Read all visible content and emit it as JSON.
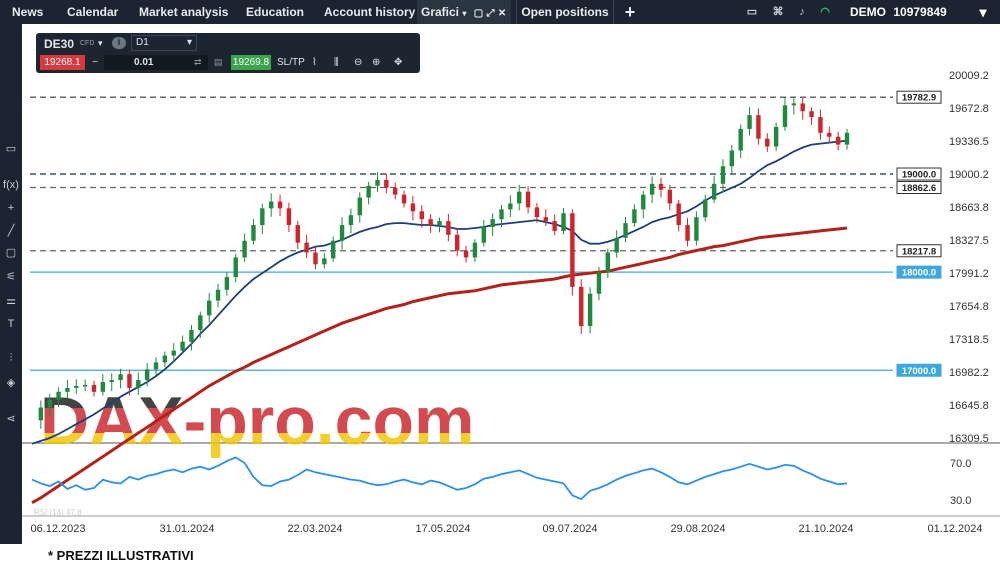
{
  "topbar": {
    "nav": [
      "News",
      "Calendar",
      "Market analysis",
      "Education",
      "Account history"
    ],
    "active_tab": "Grafici",
    "open_positions": "Open positions",
    "add_label": "+",
    "account_mode": "DEMO",
    "account_number": "10979849"
  },
  "toolbar": {
    "symbol": "DE30",
    "symbol_type": "CFD",
    "timeframe": "D1",
    "sell_price": "19268.1",
    "minus": "−",
    "volume": "0.01",
    "plus": "+",
    "buy_price": "19269.8",
    "sltp": "SL/TP"
  },
  "chart_data": {
    "type": "line",
    "symbol": "DE30",
    "timeframe": "D1",
    "y_ticks": [
      "20009.2",
      "19672.8",
      "19336.5",
      "19000.2",
      "18663.8",
      "18327.5",
      "17991.2",
      "17654.8",
      "17318.5",
      "16982.2",
      "16645.8",
      "16309.5"
    ],
    "x_ticks": [
      "06.12.2023",
      "31.01.2024",
      "22.03.2024",
      "17.05.2024",
      "09.07.2024",
      "29.08.2024",
      "21.10.2024",
      "01.12.2024"
    ],
    "levels": [
      {
        "label": "19782.9",
        "value": 19782.9,
        "style": "dashed",
        "color": "#333333"
      },
      {
        "label": "19000.0",
        "value": 19000.0,
        "style": "dashed",
        "color": "#1a2d45"
      },
      {
        "label": "18862.6",
        "value": 18862.6,
        "style": "dashed",
        "color": "#666666"
      },
      {
        "label": "18217.8",
        "value": 18217.8,
        "style": "dashed",
        "color": "#666666"
      },
      {
        "label": "18000.0",
        "value": 18000.0,
        "style": "solid",
        "color": "#3fa7dd"
      },
      {
        "label": "17000.0",
        "value": 17000.0,
        "style": "solid",
        "color": "#3fa7dd"
      }
    ],
    "close_series": [
      16490,
      16620,
      16700,
      16780,
      16820,
      16840,
      16850,
      16780,
      16880,
      16900,
      16960,
      16820,
      16900,
      17010,
      17080,
      17150,
      17200,
      17290,
      17410,
      17560,
      17710,
      17820,
      17950,
      18150,
      18320,
      18480,
      18650,
      18720,
      18650,
      18480,
      18300,
      18200,
      18080,
      18140,
      18320,
      18480,
      18580,
      18760,
      18880,
      18940,
      18860,
      18790,
      18700,
      18620,
      18540,
      18480,
      18520,
      18380,
      18220,
      18150,
      18300,
      18460,
      18540,
      18640,
      18700,
      18820,
      18660,
      18560,
      18520,
      18420,
      18600,
      17850,
      17450,
      17780,
      18000,
      18200,
      18350,
      18500,
      18640,
      18790,
      18900,
      18840,
      18700,
      18480,
      18320,
      18560,
      18740,
      18900,
      19080,
      19240,
      19460,
      19600,
      19360,
      19280,
      19480,
      19700,
      19720,
      19640,
      19580,
      19420,
      19380,
      19300,
      19420
    ],
    "ma_fast": [
      16250,
      16280,
      16310,
      16350,
      16400,
      16450,
      16500,
      16550,
      16610,
      16670,
      16730,
      16780,
      16830,
      16880,
      16940,
      17010,
      17090,
      17180,
      17270,
      17370,
      17460,
      17560,
      17660,
      17760,
      17850,
      17930,
      17990,
      18050,
      18110,
      18160,
      18200,
      18230,
      18260,
      18270,
      18300,
      18330,
      18370,
      18410,
      18440,
      18460,
      18490,
      18500,
      18500,
      18490,
      18480,
      18480,
      18470,
      18460,
      18440,
      18440,
      18450,
      18460,
      18480,
      18490,
      18500,
      18510,
      18520,
      18530,
      18510,
      18490,
      18460,
      18420,
      18330,
      18290,
      18290,
      18310,
      18340,
      18380,
      18420,
      18460,
      18510,
      18540,
      18560,
      18590,
      18620,
      18670,
      18730,
      18780,
      18820,
      18860,
      18900,
      18960,
      19030,
      19090,
      19130,
      19180,
      19230,
      19270,
      19300,
      19310,
      19320,
      19330,
      19340
    ],
    "ma_slow": [
      15650,
      15700,
      15760,
      15820,
      15880,
      15940,
      16000,
      16060,
      16120,
      16180,
      16240,
      16300,
      16360,
      16420,
      16480,
      16540,
      16600,
      16660,
      16720,
      16780,
      16840,
      16890,
      16940,
      16990,
      17030,
      17080,
      17120,
      17160,
      17200,
      17240,
      17280,
      17320,
      17360,
      17400,
      17440,
      17480,
      17510,
      17540,
      17570,
      17600,
      17630,
      17650,
      17670,
      17700,
      17720,
      17740,
      17760,
      17780,
      17790,
      17800,
      17810,
      17830,
      17850,
      17870,
      17880,
      17890,
      17900,
      17910,
      17920,
      17930,
      17950,
      17970,
      17980,
      17990,
      18000,
      18010,
      18030,
      18050,
      18070,
      18090,
      18110,
      18130,
      18150,
      18180,
      18200,
      18220,
      18240,
      18260,
      18270,
      18290,
      18310,
      18330,
      18350,
      18360,
      18370,
      18380,
      18390,
      18400,
      18410,
      18420,
      18430,
      18440,
      18450
    ],
    "rsi": {
      "label": "RSI (14) 47.8",
      "ticks": [
        "70.0",
        "30.0"
      ],
      "values": [
        52,
        48,
        45,
        50,
        42,
        46,
        41,
        43,
        52,
        49,
        48,
        55,
        52,
        56,
        58,
        61,
        63,
        60,
        64,
        66,
        63,
        67,
        72,
        76,
        70,
        55,
        46,
        45,
        50,
        52,
        57,
        63,
        60,
        58,
        56,
        54,
        52,
        51,
        48,
        46,
        47,
        50,
        52,
        49,
        47,
        51,
        49,
        45,
        41,
        43,
        47,
        53,
        55,
        58,
        60,
        62,
        58,
        54,
        52,
        50,
        48,
        35,
        31,
        40,
        43,
        47,
        52,
        56,
        59,
        62,
        64,
        60,
        55,
        49,
        47,
        51,
        55,
        58,
        61,
        63,
        66,
        69,
        66,
        63,
        65,
        68,
        67,
        62,
        58,
        53,
        50,
        47,
        48
      ]
    }
  },
  "watermark": "DAX-pro.com",
  "footer_note": "* PREZZI ILLUSTRATIVI",
  "colors": {
    "bull": "#1f8a3c",
    "bear": "#d0242c",
    "ma_fast": "#1c3f7a",
    "ma_slow": "#b3221a",
    "rsi": "#2b8ff0",
    "level_blue": "#3fa7dd"
  }
}
